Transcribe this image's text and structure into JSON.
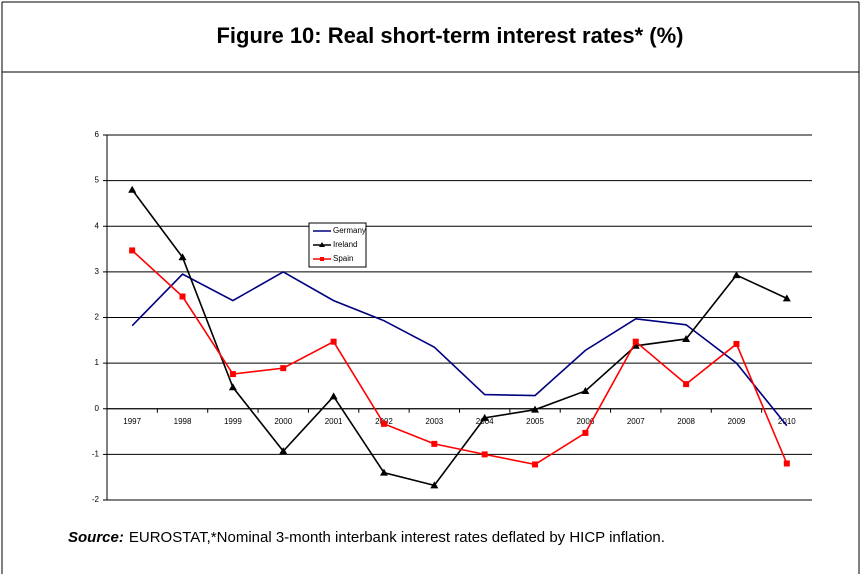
{
  "chart_data": {
    "type": "line",
    "title": "Figure 10: Real short-term interest rates* (%)",
    "categories": [
      "1997",
      "1998",
      "1999",
      "2000",
      "2001",
      "2002",
      "2003",
      "2004",
      "2005",
      "2006",
      "2007",
      "2008",
      "2009",
      "2010"
    ],
    "series": [
      {
        "name": "Germany",
        "color": "#000080",
        "marker": "none",
        "values": [
          1.82,
          2.95,
          2.37,
          3.0,
          2.37,
          1.93,
          1.35,
          0.31,
          0.29,
          1.28,
          1.97,
          1.84,
          1.0,
          -0.37
        ]
      },
      {
        "name": "Ireland",
        "color": "#000000",
        "marker": "triangle",
        "values": [
          4.8,
          3.32,
          0.47,
          -0.93,
          0.27,
          -1.4,
          -1.68,
          -0.2,
          -0.02,
          0.39,
          1.38,
          1.53,
          2.93,
          2.42
        ]
      },
      {
        "name": "Spain",
        "color": "#ff0000",
        "marker": "square",
        "values": [
          3.47,
          2.46,
          0.76,
          0.89,
          1.47,
          -0.33,
          -0.77,
          -1.0,
          -1.22,
          -0.53,
          1.47,
          0.54,
          1.42,
          -1.2
        ]
      }
    ],
    "ylim": [
      -2,
      6
    ],
    "yticks": [
      -2,
      -1,
      0,
      1,
      2,
      3,
      4,
      5,
      6
    ],
    "grid": true,
    "source_label": "Source:",
    "source_text": "EUROSTAT,*Nominal 3-month interbank interest rates deflated by HICP inflation."
  }
}
